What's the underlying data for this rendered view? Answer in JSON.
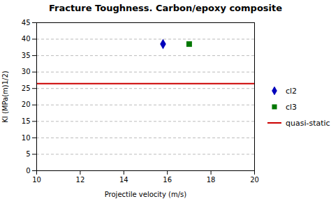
{
  "chart_data": {
    "type": "scatter",
    "title": "Fracture Toughness. Carbon/epoxy composite",
    "xlabel": "Projectile velocity (m/s)",
    "ylabel": "KI (MPa(m)1/2)",
    "xlim": [
      10,
      20
    ],
    "xticks": [
      10,
      12,
      14,
      16,
      18,
      20
    ],
    "ylim": [
      0,
      45
    ],
    "yticks": [
      0,
      5,
      10,
      15,
      20,
      25,
      30,
      35,
      40,
      45
    ],
    "grid": "y",
    "legend": "right",
    "series": [
      {
        "name": "cl2",
        "type": "scatter",
        "marker": "diamond",
        "color": "#0000bb",
        "x": [
          15.8
        ],
        "values": [
          38.5
        ]
      },
      {
        "name": "cl3",
        "type": "scatter",
        "marker": "square",
        "color": "#007700",
        "x": [
          17.0
        ],
        "values": [
          38.5
        ]
      },
      {
        "name": "quasi-static",
        "type": "hline",
        "line_style": "solid",
        "color": "#cc0000",
        "values": [
          26.5
        ]
      }
    ]
  }
}
